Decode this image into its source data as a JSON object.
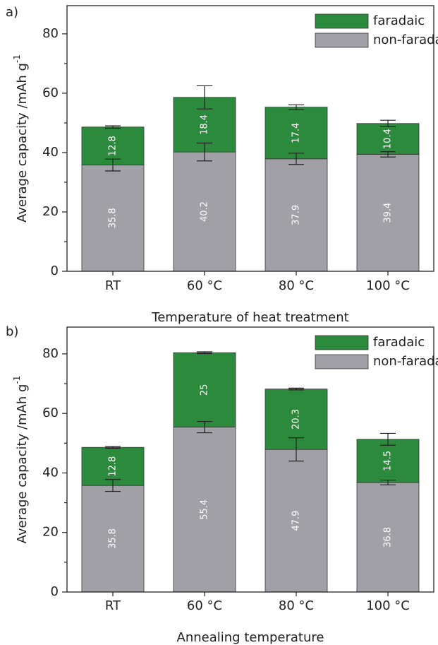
{
  "chart_data": [
    {
      "type": "stacked_bar",
      "panel_label": "a)",
      "xlabel": "Temperature of heat treatment",
      "ylabel": "Average capacity /mAh g",
      "ylabel_sup": "-1",
      "categories": [
        "RT",
        "60 °C",
        "80 °C",
        "100 °C"
      ],
      "series": [
        {
          "name": "non-faradaic",
          "color": "#a0a0a6",
          "values": [
            35.8,
            40.2,
            37.9,
            39.4
          ],
          "errors": [
            2.0,
            3.0,
            1.9,
            0.9
          ]
        },
        {
          "name": "faradaic",
          "color": "#2b8a3c",
          "values": [
            12.8,
            18.4,
            17.4,
            10.4
          ],
          "errors": [
            0.4,
            3.9,
            0.8,
            1.1
          ]
        }
      ],
      "ylim": [
        0,
        89.5
      ],
      "yticks": [
        0,
        20,
        40,
        60,
        80
      ],
      "yminor_ticks": [
        10,
        30,
        50,
        70
      ],
      "legend": "upper right"
    },
    {
      "type": "stacked_bar",
      "panel_label": "b)",
      "xlabel": "Annealing temperature",
      "ylabel": "Average capacity /mAh g",
      "ylabel_sup": "-1",
      "categories": [
        "RT",
        "60 °C",
        "80 °C",
        "100 °C"
      ],
      "series": [
        {
          "name": "non-faradaic",
          "color": "#a0a0a6",
          "values": [
            35.8,
            55.4,
            47.9,
            36.8
          ],
          "errors": [
            2.0,
            1.9,
            3.9,
            0.8
          ]
        },
        {
          "name": "faradaic",
          "color": "#2b8a3c",
          "values": [
            12.8,
            25,
            20.3,
            14.5
          ],
          "errors": [
            0.3,
            0.3,
            0.3,
            2.0
          ]
        }
      ],
      "ylim": [
        0,
        89
      ],
      "yticks": [
        0,
        20,
        40,
        60,
        80
      ],
      "yminor_ticks": [
        10,
        30,
        50,
        70
      ],
      "legend": "upper right"
    }
  ]
}
